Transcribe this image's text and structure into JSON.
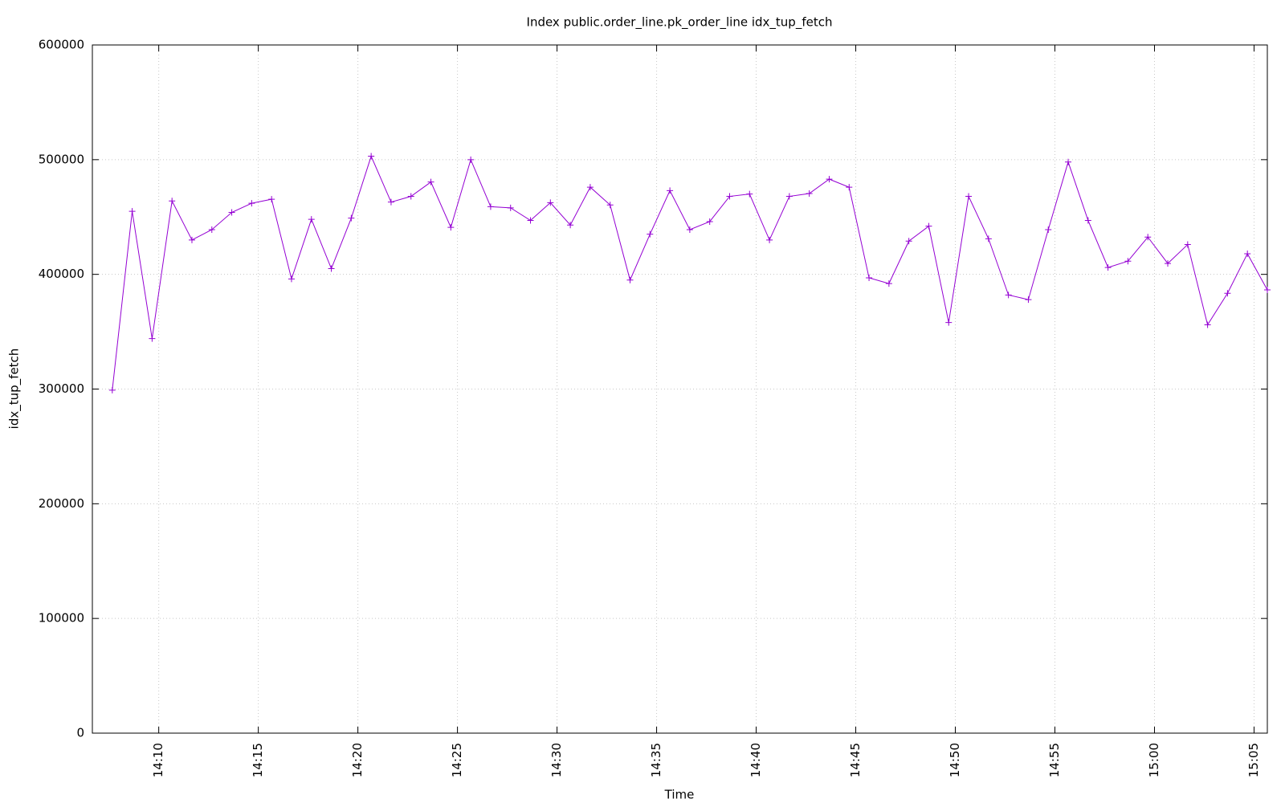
{
  "chart_data": {
    "type": "line",
    "title": "Index public.order_line.pk_order_line idx_tup_fetch",
    "xlabel": "Time",
    "ylabel": "idx_tup_fetch",
    "color": "#9400d3",
    "grid": true,
    "x": [
      "14:07:40",
      "14:08:40",
      "14:09:40",
      "14:10:40",
      "14:11:40",
      "14:12:40",
      "14:13:40",
      "14:14:40",
      "14:15:40",
      "14:16:40",
      "14:17:40",
      "14:18:40",
      "14:19:40",
      "14:20:40",
      "14:21:40",
      "14:22:40",
      "14:23:40",
      "14:24:40",
      "14:25:40",
      "14:26:40",
      "14:27:40",
      "14:28:40",
      "14:29:40",
      "14:30:40",
      "14:31:40",
      "14:32:40",
      "14:33:40",
      "14:34:40",
      "14:35:40",
      "14:36:40",
      "14:37:40",
      "14:38:40",
      "14:39:40",
      "14:40:40",
      "14:41:40",
      "14:42:40",
      "14:43:40",
      "14:44:40",
      "14:45:40",
      "14:46:40",
      "14:47:40",
      "14:48:40",
      "14:49:40",
      "14:50:40",
      "14:51:40",
      "14:52:40",
      "14:53:40",
      "14:54:40",
      "14:55:40",
      "14:56:40",
      "14:57:40",
      "14:58:40",
      "14:59:40",
      "15:00:40",
      "15:01:40",
      "15:02:40",
      "15:03:40",
      "15:04:40",
      "15:05:40"
    ],
    "values": [
      299000,
      455000,
      344000,
      464000,
      430000,
      439000,
      454000,
      462000,
      465500,
      396000,
      448000,
      405000,
      449000,
      503000,
      463000,
      468000,
      480500,
      441000,
      500000,
      459000,
      458000,
      447000,
      462500,
      443000,
      476000,
      460500,
      395000,
      435000,
      473000,
      439000,
      446000,
      468000,
      470000,
      430000,
      468000,
      470500,
      483000,
      476000,
      397000,
      392000,
      429000,
      442000,
      358000,
      468000,
      431000,
      382000,
      378000,
      439000,
      498000,
      447000,
      406000,
      411500,
      432500,
      409500,
      426000,
      356000,
      383500,
      418000,
      386500
    ],
    "xlim": [
      "14:06:40",
      "15:05:40"
    ],
    "xticks": [
      "14:10",
      "14:15",
      "14:20",
      "14:25",
      "14:30",
      "14:35",
      "14:40",
      "14:45",
      "14:50",
      "14:55",
      "15:00",
      "15:05"
    ],
    "ylim": [
      0,
      600000
    ],
    "yticks": [
      0,
      100000,
      200000,
      300000,
      400000,
      500000,
      600000
    ]
  }
}
